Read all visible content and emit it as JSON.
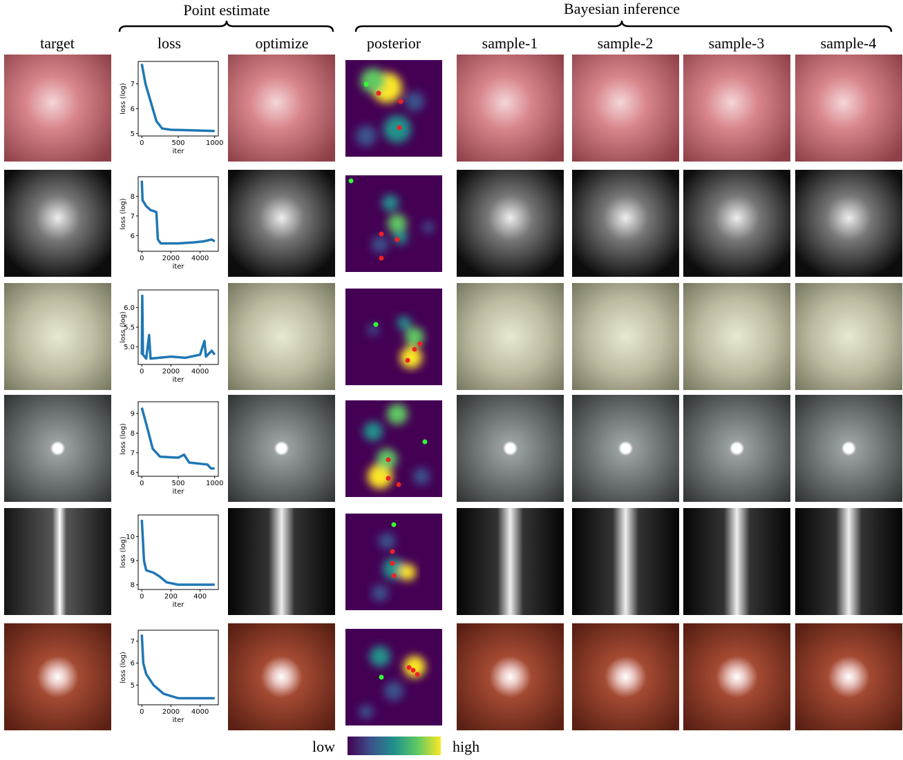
{
  "header": {
    "point_estimate": "Point estimate",
    "bayesian": "Bayesian inference"
  },
  "columns": [
    "target",
    "loss",
    "optimize",
    "posterior",
    "sample-1",
    "sample-2",
    "sample-3",
    "sample-4"
  ],
  "rows": [
    {
      "loss": {
        "type": "line",
        "xlabel": "iter",
        "ylabel": "loss (log)",
        "xlim": [
          -50,
          1050
        ],
        "ylim": [
          4.9,
          7.9
        ],
        "xticks": [
          0,
          500,
          1000
        ],
        "yticks": [
          5,
          6,
          7
        ],
        "x": [
          0,
          50,
          100,
          150,
          200,
          280,
          400,
          1000
        ],
        "values": [
          7.8,
          7,
          6.5,
          6,
          5.5,
          5.2,
          5.15,
          5.1
        ]
      }
    },
    {
      "loss": {
        "type": "line",
        "xlabel": "iter",
        "ylabel": "loss (log)",
        "xlim": [
          -250,
          5250
        ],
        "ylim": [
          5.2,
          9
        ],
        "xticks": [
          0,
          2000,
          4000
        ],
        "yticks": [
          6,
          7,
          8
        ],
        "x": [
          0,
          50,
          300,
          600,
          1000,
          1100,
          1300,
          2500,
          3500,
          4200,
          4800,
          5000
        ],
        "values": [
          8.8,
          7.8,
          7.5,
          7.3,
          7.2,
          5.8,
          5.6,
          5.6,
          5.65,
          5.7,
          5.8,
          5.7
        ]
      }
    },
    {
      "loss": {
        "type": "line",
        "xlabel": "iter",
        "ylabel": "loss (log)",
        "xlim": [
          -250,
          5250
        ],
        "ylim": [
          4.55,
          6.45
        ],
        "xticks": [
          0,
          2000,
          4000
        ],
        "yticks": [
          {
            "value": 5,
            "label": "5.0"
          },
          {
            "value": 5.5,
            "label": "5.5"
          },
          {
            "value": 6,
            "label": "6.0"
          }
        ],
        "x": [
          0,
          30,
          80,
          300,
          500,
          600,
          2000,
          3000,
          4000,
          4300,
          4400,
          4800,
          5000
        ],
        "values": [
          4.8,
          6.3,
          4.8,
          4.7,
          5.3,
          4.7,
          4.75,
          4.72,
          4.8,
          5.15,
          4.75,
          4.9,
          4.8
        ]
      }
    },
    {
      "loss": {
        "type": "line",
        "xlabel": "iter",
        "ylabel": "loss (log)",
        "xlim": [
          -50,
          1050
        ],
        "ylim": [
          5.8,
          9.6
        ],
        "xticks": [
          0,
          500,
          1000
        ],
        "yticks": [
          6,
          7,
          8,
          9
        ],
        "x": [
          0,
          80,
          150,
          250,
          500,
          580,
          650,
          900,
          950,
          1000
        ],
        "values": [
          9.3,
          8.2,
          7.2,
          6.8,
          6.75,
          6.9,
          6.5,
          6.4,
          6.2,
          6.2
        ]
      }
    },
    {
      "loss": {
        "type": "line",
        "xlabel": "iter",
        "ylabel": "loss (log)",
        "xlim": [
          -25,
          525
        ],
        "ylim": [
          7.8,
          10.9
        ],
        "xticks": [
          0,
          200,
          400
        ],
        "yticks": [
          8,
          9,
          10
        ],
        "x": [
          0,
          15,
          30,
          80,
          120,
          170,
          250,
          500
        ],
        "values": [
          10.7,
          9,
          8.6,
          8.5,
          8.35,
          8.1,
          8,
          8
        ]
      }
    },
    {
      "loss": {
        "type": "line",
        "xlabel": "iter",
        "ylabel": "loss (log)",
        "xlim": [
          -250,
          5250
        ],
        "ylim": [
          4.1,
          7.5
        ],
        "xticks": [
          0,
          2000,
          4000
        ],
        "yticks": [
          5,
          6,
          7
        ],
        "x": [
          0,
          100,
          300,
          800,
          1500,
          2500,
          5000
        ],
        "values": [
          7.3,
          6,
          5.5,
          5,
          4.6,
          4.4,
          4.4
        ]
      }
    }
  ],
  "colorbar": {
    "low": "low",
    "high": "high"
  }
}
